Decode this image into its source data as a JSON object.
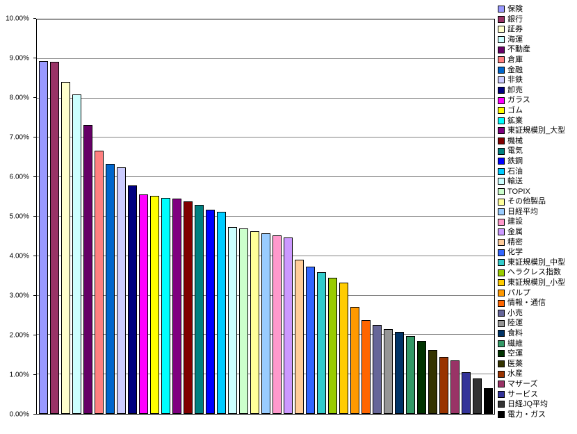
{
  "chart_data": {
    "type": "bar",
    "title": "",
    "xlabel": "",
    "ylabel": "",
    "ylim": [
      0,
      10
    ],
    "grid": true,
    "legend_position": "right",
    "background": "#FFFFFF",
    "gridline_color": "#808080",
    "axis_color": "#000000",
    "y_ticks": [
      "0.00%",
      "1.00%",
      "2.00%",
      "3.00%",
      "4.00%",
      "5.00%",
      "6.00%",
      "7.00%",
      "8.00%",
      "9.00%",
      "10.00%"
    ],
    "categories": [
      "保険",
      "銀行",
      "証券",
      "海運",
      "不動産",
      "倉庫",
      "金融",
      "非鉄",
      "卸売",
      "ガラス",
      "ゴム",
      "鉱業",
      "東証規模別_大型",
      "機械",
      "電気",
      "鉄鋼",
      "石油",
      "輸送",
      "TOPIX",
      "その他製品",
      "日経平均",
      "建設",
      "金属",
      "精密",
      "化学",
      "東証規模別_中型",
      "ヘラクレス指数",
      "東証規模別_小型",
      "パルプ",
      "情報・通信",
      "小売",
      "陸運",
      "食料",
      "繊維",
      "空運",
      "医薬",
      "水産",
      "マザーズ",
      "サービス",
      "日経JQ平均",
      "電力・ガス"
    ],
    "values": [
      8.95,
      8.92,
      8.42,
      8.1,
      7.33,
      6.67,
      6.33,
      6.25,
      5.8,
      5.57,
      5.52,
      5.48,
      5.45,
      5.38,
      5.3,
      5.17,
      5.12,
      4.73,
      4.7,
      4.63,
      4.57,
      4.52,
      4.47,
      3.9,
      3.73,
      3.6,
      3.45,
      3.32,
      2.72,
      2.38,
      2.25,
      2.15,
      2.08,
      1.97,
      1.85,
      1.62,
      1.45,
      1.35,
      1.05,
      0.9,
      0.65
    ],
    "colors": [
      "#9999FF",
      "#993366",
      "#FFFFCC",
      "#CCFFFF",
      "#660066",
      "#FF8080",
      "#0066CC",
      "#CCCCFF",
      "#000080",
      "#FF00FF",
      "#FFFF00",
      "#00FFFF",
      "#800080",
      "#800000",
      "#008080",
      "#0000FF",
      "#00CCFF",
      "#CCFFFF",
      "#CCFFCC",
      "#FFFF99",
      "#99CCFF",
      "#FF99CC",
      "#CC99FF",
      "#FFCC99",
      "#3366FF",
      "#33CCCC",
      "#99CC00",
      "#FFCC00",
      "#FF9900",
      "#FF6600",
      "#666699",
      "#969696",
      "#003366",
      "#339966",
      "#003300",
      "#333300",
      "#993300",
      "#993366",
      "#333399",
      "#333333",
      "#000000"
    ]
  }
}
